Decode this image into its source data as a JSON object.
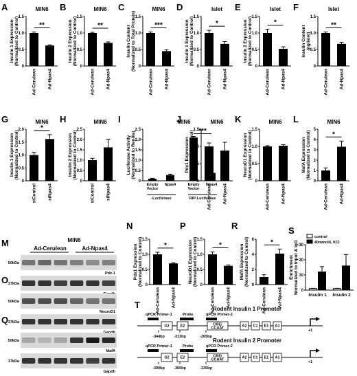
{
  "panels": [
    {
      "id": "A",
      "label": "A",
      "title": "MIN6",
      "ylabel": [
        "Insulin 1 Expression",
        "(Normalized to Control)"
      ],
      "ylim": [
        0,
        1.5
      ],
      "ticks": [
        0,
        0.5,
        1.0,
        1.5
      ],
      "tick_labels": [
        "0",
        "0.5",
        "1.0",
        "1.5"
      ],
      "categories": [
        "Ad-Cerulean",
        "Ad-Npas4"
      ],
      "values": [
        1.0,
        0.62
      ],
      "errors": [
        0.03,
        0.02
      ],
      "colors": [
        "#000000",
        "#000000"
      ],
      "sig": [
        {
          "from": 0,
          "to": 1,
          "text": "**"
        }
      ]
    },
    {
      "id": "B",
      "label": "B",
      "title": "MIN6",
      "ylabel": [
        "Insulin 2 Expression",
        "(Normalized to Control)"
      ],
      "ylim": [
        0,
        1.5
      ],
      "ticks": [
        0,
        0.5,
        1.0,
        1.5
      ],
      "tick_labels": [
        "0",
        "0.5",
        "1.0",
        "1.5"
      ],
      "categories": [
        "Ad-Cerulean",
        "Ad-Npas4"
      ],
      "values": [
        1.0,
        0.7
      ],
      "errors": [
        0.02,
        0.03
      ],
      "colors": [
        "#000000",
        "#000000"
      ],
      "sig": [
        {
          "from": 0,
          "to": 1,
          "text": "**"
        }
      ]
    },
    {
      "id": "C",
      "label": "C",
      "title": "MIN6",
      "ylabel": [
        "Insulin Content",
        "(Normalized to Total Protein)"
      ],
      "ylim": [
        0,
        1.5
      ],
      "ticks": [
        0,
        0.5,
        1.0,
        1.5
      ],
      "tick_labels": [
        "0",
        "0.5",
        "1.0",
        "1.5"
      ],
      "categories": [
        "Ad-Cerulean",
        "Ad-Npas4"
      ],
      "values": [
        1.0,
        0.45
      ],
      "errors": [
        0.03,
        0.04
      ],
      "colors": [
        "#000000",
        "#000000"
      ],
      "sig": [
        {
          "from": 0,
          "to": 1,
          "text": "***"
        }
      ]
    },
    {
      "id": "D",
      "label": "D",
      "title": "Islet",
      "ylabel": [
        "Insulin 1 Expression",
        "(Normalized to Control)"
      ],
      "ylim": [
        0,
        1.5
      ],
      "ticks": [
        0,
        0.5,
        1.0,
        1.5
      ],
      "tick_labels": [
        "0",
        "0.5",
        "1.0",
        "1.5"
      ],
      "categories": [
        "Ad-Cerulean",
        "Ad-Npas4"
      ],
      "values": [
        1.0,
        0.67
      ],
      "errors": [
        0.08,
        0.07
      ],
      "colors": [
        "#000000",
        "#000000"
      ],
      "sig": [
        {
          "from": 0,
          "to": 1,
          "text": "*"
        }
      ]
    },
    {
      "id": "E",
      "label": "E",
      "title": "Islet",
      "ylabel": [
        "Insulin 2 Expression",
        "(Normalized to Control)"
      ],
      "ylim": [
        0,
        1.5
      ],
      "ticks": [
        0,
        0.5,
        1.0,
        1.5
      ],
      "tick_labels": [
        "0",
        "0.5",
        "1.0",
        "1.5"
      ],
      "categories": [
        "Ad-Cerulean",
        "Ad-Npas4"
      ],
      "values": [
        1.0,
        0.52
      ],
      "errors": [
        0.11,
        0.06
      ],
      "colors": [
        "#000000",
        "#000000"
      ],
      "sig": [
        {
          "from": 0,
          "to": 1,
          "text": "*"
        }
      ]
    },
    {
      "id": "F",
      "label": "F",
      "title": "Islet",
      "ylabel": [
        "Insulin Content",
        "(ng/islet)"
      ],
      "ylim": [
        0,
        1.5
      ],
      "ticks": [
        0,
        0.5,
        1.0,
        1.5
      ],
      "tick_labels": [
        "0",
        "0.5",
        "1.0",
        "1.5"
      ],
      "categories": [
        "Ad-Cerulean",
        "Ad-Npas4"
      ],
      "values": [
        1.0,
        0.67
      ],
      "errors": [
        0.03,
        0.05
      ],
      "colors": [
        "#000000",
        "#000000"
      ],
      "sig": [
        {
          "from": 0,
          "to": 1,
          "text": "**"
        }
      ]
    },
    {
      "id": "G",
      "label": "G",
      "title": "MIN6",
      "ylabel": [
        "Insulin 1 Expression",
        "(Normalized to Control)"
      ],
      "ylim": [
        0,
        2.0
      ],
      "ticks": [
        0,
        0.5,
        1.0,
        1.5,
        2.0
      ],
      "tick_labels": [
        "0",
        "0.5",
        "1.0",
        "1.5",
        "2.0"
      ],
      "categories": [
        "siControl",
        "siNpas4"
      ],
      "values": [
        1.0,
        1.62
      ],
      "errors": [
        0.1,
        0.17
      ],
      "colors": [
        "#000000",
        "#000000"
      ],
      "sig": [
        {
          "from": 0,
          "to": 1,
          "text": "*"
        }
      ]
    },
    {
      "id": "H",
      "label": "H",
      "title": "MIN6",
      "ylabel": [
        "Insulin 2 Expression",
        "(Normalized to Control)"
      ],
      "ylim": [
        0,
        2.5
      ],
      "ticks": [
        0,
        0.5,
        1.0,
        1.5,
        2.0,
        2.5
      ],
      "tick_labels": [
        "0",
        "0.5",
        "1.0",
        "1.5",
        "2.0",
        "2.5"
      ],
      "categories": [
        "siControl",
        "siNpas4"
      ],
      "values": [
        1.0,
        1.62
      ],
      "errors": [
        0.09,
        0.4
      ],
      "colors": [
        "#000000",
        "#000000"
      ],
      "sig": []
    },
    {
      "id": "J",
      "label": "J",
      "title": "MIN6",
      "ylabel": [
        "Pdx1 Expression",
        "(Normalized to Control)"
      ],
      "ylim": [
        0,
        1.5
      ],
      "ticks": [
        0,
        0.5,
        1.0,
        1.5
      ],
      "tick_labels": [
        "0",
        "0.5",
        "1.0",
        "1.5"
      ],
      "categories": [
        "Ad-Cerulean",
        "Ad-Npas4"
      ],
      "values": [
        1.0,
        0.88
      ],
      "errors": [
        0.1,
        0.24
      ],
      "colors": [
        "#000000",
        "#000000"
      ],
      "sig": []
    },
    {
      "id": "K",
      "label": "K",
      "title": "MIN6",
      "ylabel": [
        "NeuroD1 Expression",
        "(Normalized to Control)"
      ],
      "ylim": [
        0,
        1.5
      ],
      "ticks": [
        0,
        0.5,
        1.0,
        1.5
      ],
      "tick_labels": [
        "0",
        "0.5",
        "1.0",
        "1.5"
      ],
      "categories": [
        "Ad-Cerulean",
        "Ad-Npas4"
      ],
      "values": [
        1.0,
        1.02
      ],
      "errors": [
        0.02,
        0.03
      ],
      "colors": [
        "#000000",
        "#000000"
      ],
      "sig": []
    },
    {
      "id": "L",
      "label": "L",
      "title": "MIN6",
      "ylabel": [
        "MafA Expression",
        "(Normalized to Control)"
      ],
      "ylim": [
        0,
        5
      ],
      "ticks": [
        0,
        1,
        2,
        3,
        4,
        5
      ],
      "tick_labels": [
        "0",
        "1",
        "2",
        "3",
        "4",
        "5"
      ],
      "categories": [
        "Ad-Cerulean",
        "Ad-Npas4"
      ],
      "values": [
        1.0,
        3.3
      ],
      "errors": [
        0.25,
        0.55
      ],
      "colors": [
        "#000000",
        "#000000"
      ],
      "sig": [
        {
          "from": 0,
          "to": 1,
          "text": "*"
        }
      ]
    },
    {
      "id": "N",
      "label": "N",
      "title": "",
      "ylabel": [
        "Pdx1 Expression",
        "(Normalized to Control)"
      ],
      "ylim": [
        0,
        1.5
      ],
      "ticks": [
        0,
        0.5,
        1.0,
        1.5
      ],
      "tick_labels": [
        "0",
        "0.5",
        "1.0",
        "1.5"
      ],
      "categories": [
        "Ad-Cerulean",
        "Ad-Npas4"
      ],
      "values": [
        1.0,
        0.7
      ],
      "errors": [
        0.07,
        0.02
      ],
      "colors": [
        "#000000",
        "#000000"
      ],
      "sig": [
        {
          "from": 0,
          "to": 1,
          "text": "*"
        }
      ]
    },
    {
      "id": "P",
      "label": "P",
      "title": "",
      "ylabel": [
        "NeuroD1 Expression",
        "(Normalized to Control)"
      ],
      "ylim": [
        0,
        1.5
      ],
      "ticks": [
        0,
        0.5,
        1.0,
        1.5
      ],
      "tick_labels": [
        "0",
        "0.5",
        "1.0",
        "1.5"
      ],
      "categories": [
        "Ad-Cerulean",
        "Ad-Npas4"
      ],
      "values": [
        1.0,
        0.62
      ],
      "errors": [
        0.08,
        0.03
      ],
      "colors": [
        "#000000",
        "#000000"
      ],
      "sig": [
        {
          "from": 0,
          "to": 1,
          "text": "*"
        }
      ]
    },
    {
      "id": "R",
      "label": "R",
      "title": "",
      "ylabel": [
        "MafA Expression",
        "(Normalized to Control)"
      ],
      "ylim": [
        0,
        6
      ],
      "ticks": [
        0,
        2,
        4,
        6
      ],
      "tick_labels": [
        "0",
        "2",
        "4",
        "6"
      ],
      "categories": [
        "Ad-Cerulean",
        "Ad-Npas4"
      ],
      "values": [
        1.0,
        4.1
      ],
      "errors": [
        0.3,
        0.6
      ],
      "colors": [
        "#000000",
        "#000000"
      ],
      "sig": [
        {
          "from": 0,
          "to": 1,
          "text": "*"
        }
      ]
    }
  ],
  "panel_I": {
    "label": "I",
    "title": "MIN6",
    "ylabel": [
      "Luciferase Activity",
      "(Normalized to Renilla)"
    ],
    "ylim": [
      0,
      2.5
    ],
    "ticks": [
      0,
      0.5,
      1.0,
      1.5,
      2.0,
      2.5
    ],
    "tick_labels": [
      "0",
      "0.5",
      "1.0",
      "1.5",
      "2.0",
      "2.5"
    ],
    "bars": [
      {
        "label": [
          "Empty",
          "Vector"
        ],
        "value": 0.1,
        "error": 0.02
      },
      {
        "label": [
          "Npas4"
        ],
        "value": 0.28,
        "error": 0.04
      },
      {
        "label": [
          "Empty",
          "Vector"
        ],
        "value": 2.1,
        "error": 0.05
      },
      {
        "label": [
          "Npas4"
        ],
        "value": 0.38,
        "error": 0.03
      }
    ],
    "groups": [
      "-Luciferase",
      "RIP-Luciferase"
    ],
    "sig": {
      "from": 2,
      "to": 3,
      "text": "***"
    }
  },
  "panel_S": {
    "label": "S",
    "ylabel": [
      "Enrichment",
      "Normalized to Input & IgG"
    ],
    "ylim": [
      0,
      30
    ],
    "ticks": [
      0,
      10,
      20,
      30
    ],
    "tick_labels": [
      "0",
      "10",
      "20",
      "30"
    ],
    "categories": [
      "Insulin 1",
      "Insulin 2"
    ],
    "series": [
      {
        "name": "control",
        "values": [
          1,
          1
        ],
        "errors": [
          0.2,
          0.2
        ],
        "color": "#ffffff"
      },
      {
        "name": "40mmol/L KCl",
        "values": [
          12,
          16
        ],
        "errors": [
          3.5,
          7.5
        ],
        "color": "#000000"
      }
    ]
  },
  "blot": {
    "label_M": "M",
    "label_O": "O",
    "label_Q": "Q",
    "title": "MIN6",
    "groups": [
      "Ad-Cerulean",
      "Ad-Npas4"
    ],
    "rows": [
      {
        "kda": "50kDa",
        "name": "Pdx-1",
        "intensities": [
          0.55,
          0.6,
          0.55,
          0.5,
          0.45,
          0.5
        ]
      },
      {
        "kda": "37kDa",
        "name": "Gapdh",
        "intensities": [
          0.8,
          0.8,
          0.75,
          0.8,
          0.8,
          0.75
        ]
      },
      {
        "kda": "50kDa",
        "name": "NeuroD1",
        "intensities": [
          0.7,
          0.7,
          0.7,
          0.6,
          0.55,
          0.55
        ]
      },
      {
        "kda": "37kDa",
        "name": "Gapdh",
        "intensities": [
          0.8,
          0.8,
          0.8,
          0.8,
          0.8,
          0.8
        ]
      },
      {
        "kda": "50kDa",
        "name": "MafA",
        "intensities": [
          0.35,
          0.3,
          0.35,
          0.8,
          0.9,
          0.85
        ]
      },
      {
        "kda": "37kDa",
        "name": "Gapdh",
        "intensities": [
          0.8,
          0.8,
          0.8,
          0.8,
          0.75,
          0.8
        ]
      }
    ]
  },
  "promoter": {
    "label": "T",
    "lines": [
      {
        "title": "Rodent Insulin 1 Promoter",
        "primer1": "qPCR Primer-1",
        "probe": "Probe",
        "primer2": "qPCR Primer-2",
        "pos": [
          "-344bp",
          "-313bp",
          "-265bp"
        ],
        "boxes": [
          "G2",
          "E2",
          "CRE/CCAAT",
          "A2",
          "C1",
          "E1",
          "A1"
        ],
        "plus": "+1"
      },
      {
        "title": "Rodent Insulin 2 Promoter",
        "primer1": "qPCR Primer-1",
        "probe": "Probe",
        "primer2": "qPCR Primer-2",
        "pos": [
          "-390bp",
          "-360bp",
          "-335bp"
        ],
        "boxes": [
          "G2",
          "E2",
          "CRE/CCAAT",
          "A2",
          "C1",
          "E1",
          "A1"
        ],
        "plus": "+1"
      }
    ]
  }
}
